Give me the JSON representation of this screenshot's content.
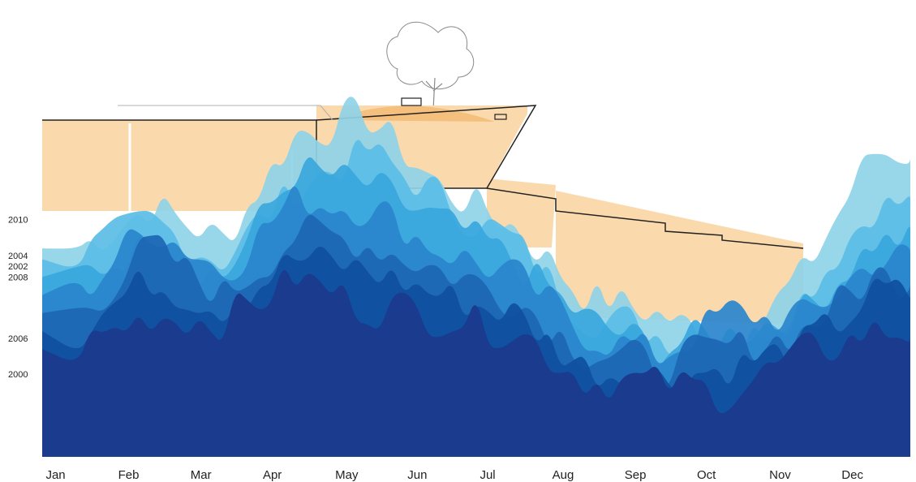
{
  "colors": {
    "building_fill": "#fad9ad",
    "roof_fill": "#f5c07d",
    "outline": "#222222",
    "layers": [
      "#8fd3e8",
      "#5bbde6",
      "#3aa7dd",
      "#2a86cc",
      "#1d66b4",
      "#0f4f9f",
      "#1a3b8e"
    ]
  },
  "chart_data": {
    "type": "area",
    "title": "",
    "xlabel": "",
    "ylabel": "",
    "x": [
      "Jan",
      "Feb",
      "Mar",
      "Apr",
      "May",
      "Jun",
      "Jul",
      "Aug",
      "Sep",
      "Oct",
      "Nov",
      "Dec"
    ],
    "year_labels": [
      {
        "label": "2010",
        "value": 0.66
      },
      {
        "label": "2004",
        "value": 0.56
      },
      {
        "label": "2002",
        "value": 0.53
      },
      {
        "label": "2008",
        "value": 0.5
      },
      {
        "label": "2006",
        "value": 0.33
      },
      {
        "label": "2000",
        "value": 0.23
      }
    ],
    "ylim": [
      0,
      1
    ],
    "series": [
      {
        "values": [
          0.58,
          0.7,
          0.6,
          0.9,
          0.95,
          0.75,
          0.65,
          0.45,
          0.4,
          0.3,
          0.5,
          0.85
        ]
      },
      {
        "values": [
          0.55,
          0.65,
          0.55,
          0.75,
          0.85,
          0.72,
          0.6,
          0.4,
          0.35,
          0.28,
          0.45,
          0.7
        ]
      },
      {
        "values": [
          0.5,
          0.6,
          0.5,
          0.8,
          0.75,
          0.65,
          0.55,
          0.38,
          0.3,
          0.35,
          0.4,
          0.6
        ]
      },
      {
        "values": [
          0.45,
          0.65,
          0.52,
          0.72,
          0.7,
          0.58,
          0.5,
          0.35,
          0.28,
          0.4,
          0.38,
          0.55
        ]
      },
      {
        "values": [
          0.4,
          0.58,
          0.45,
          0.62,
          0.6,
          0.52,
          0.45,
          0.3,
          0.25,
          0.3,
          0.35,
          0.5
        ]
      },
      {
        "values": [
          0.35,
          0.5,
          0.42,
          0.55,
          0.52,
          0.45,
          0.4,
          0.25,
          0.22,
          0.25,
          0.3,
          0.45
        ]
      },
      {
        "values": [
          0.3,
          0.4,
          0.38,
          0.5,
          0.42,
          0.4,
          0.36,
          0.22,
          0.2,
          0.18,
          0.28,
          0.35
        ]
      }
    ]
  }
}
